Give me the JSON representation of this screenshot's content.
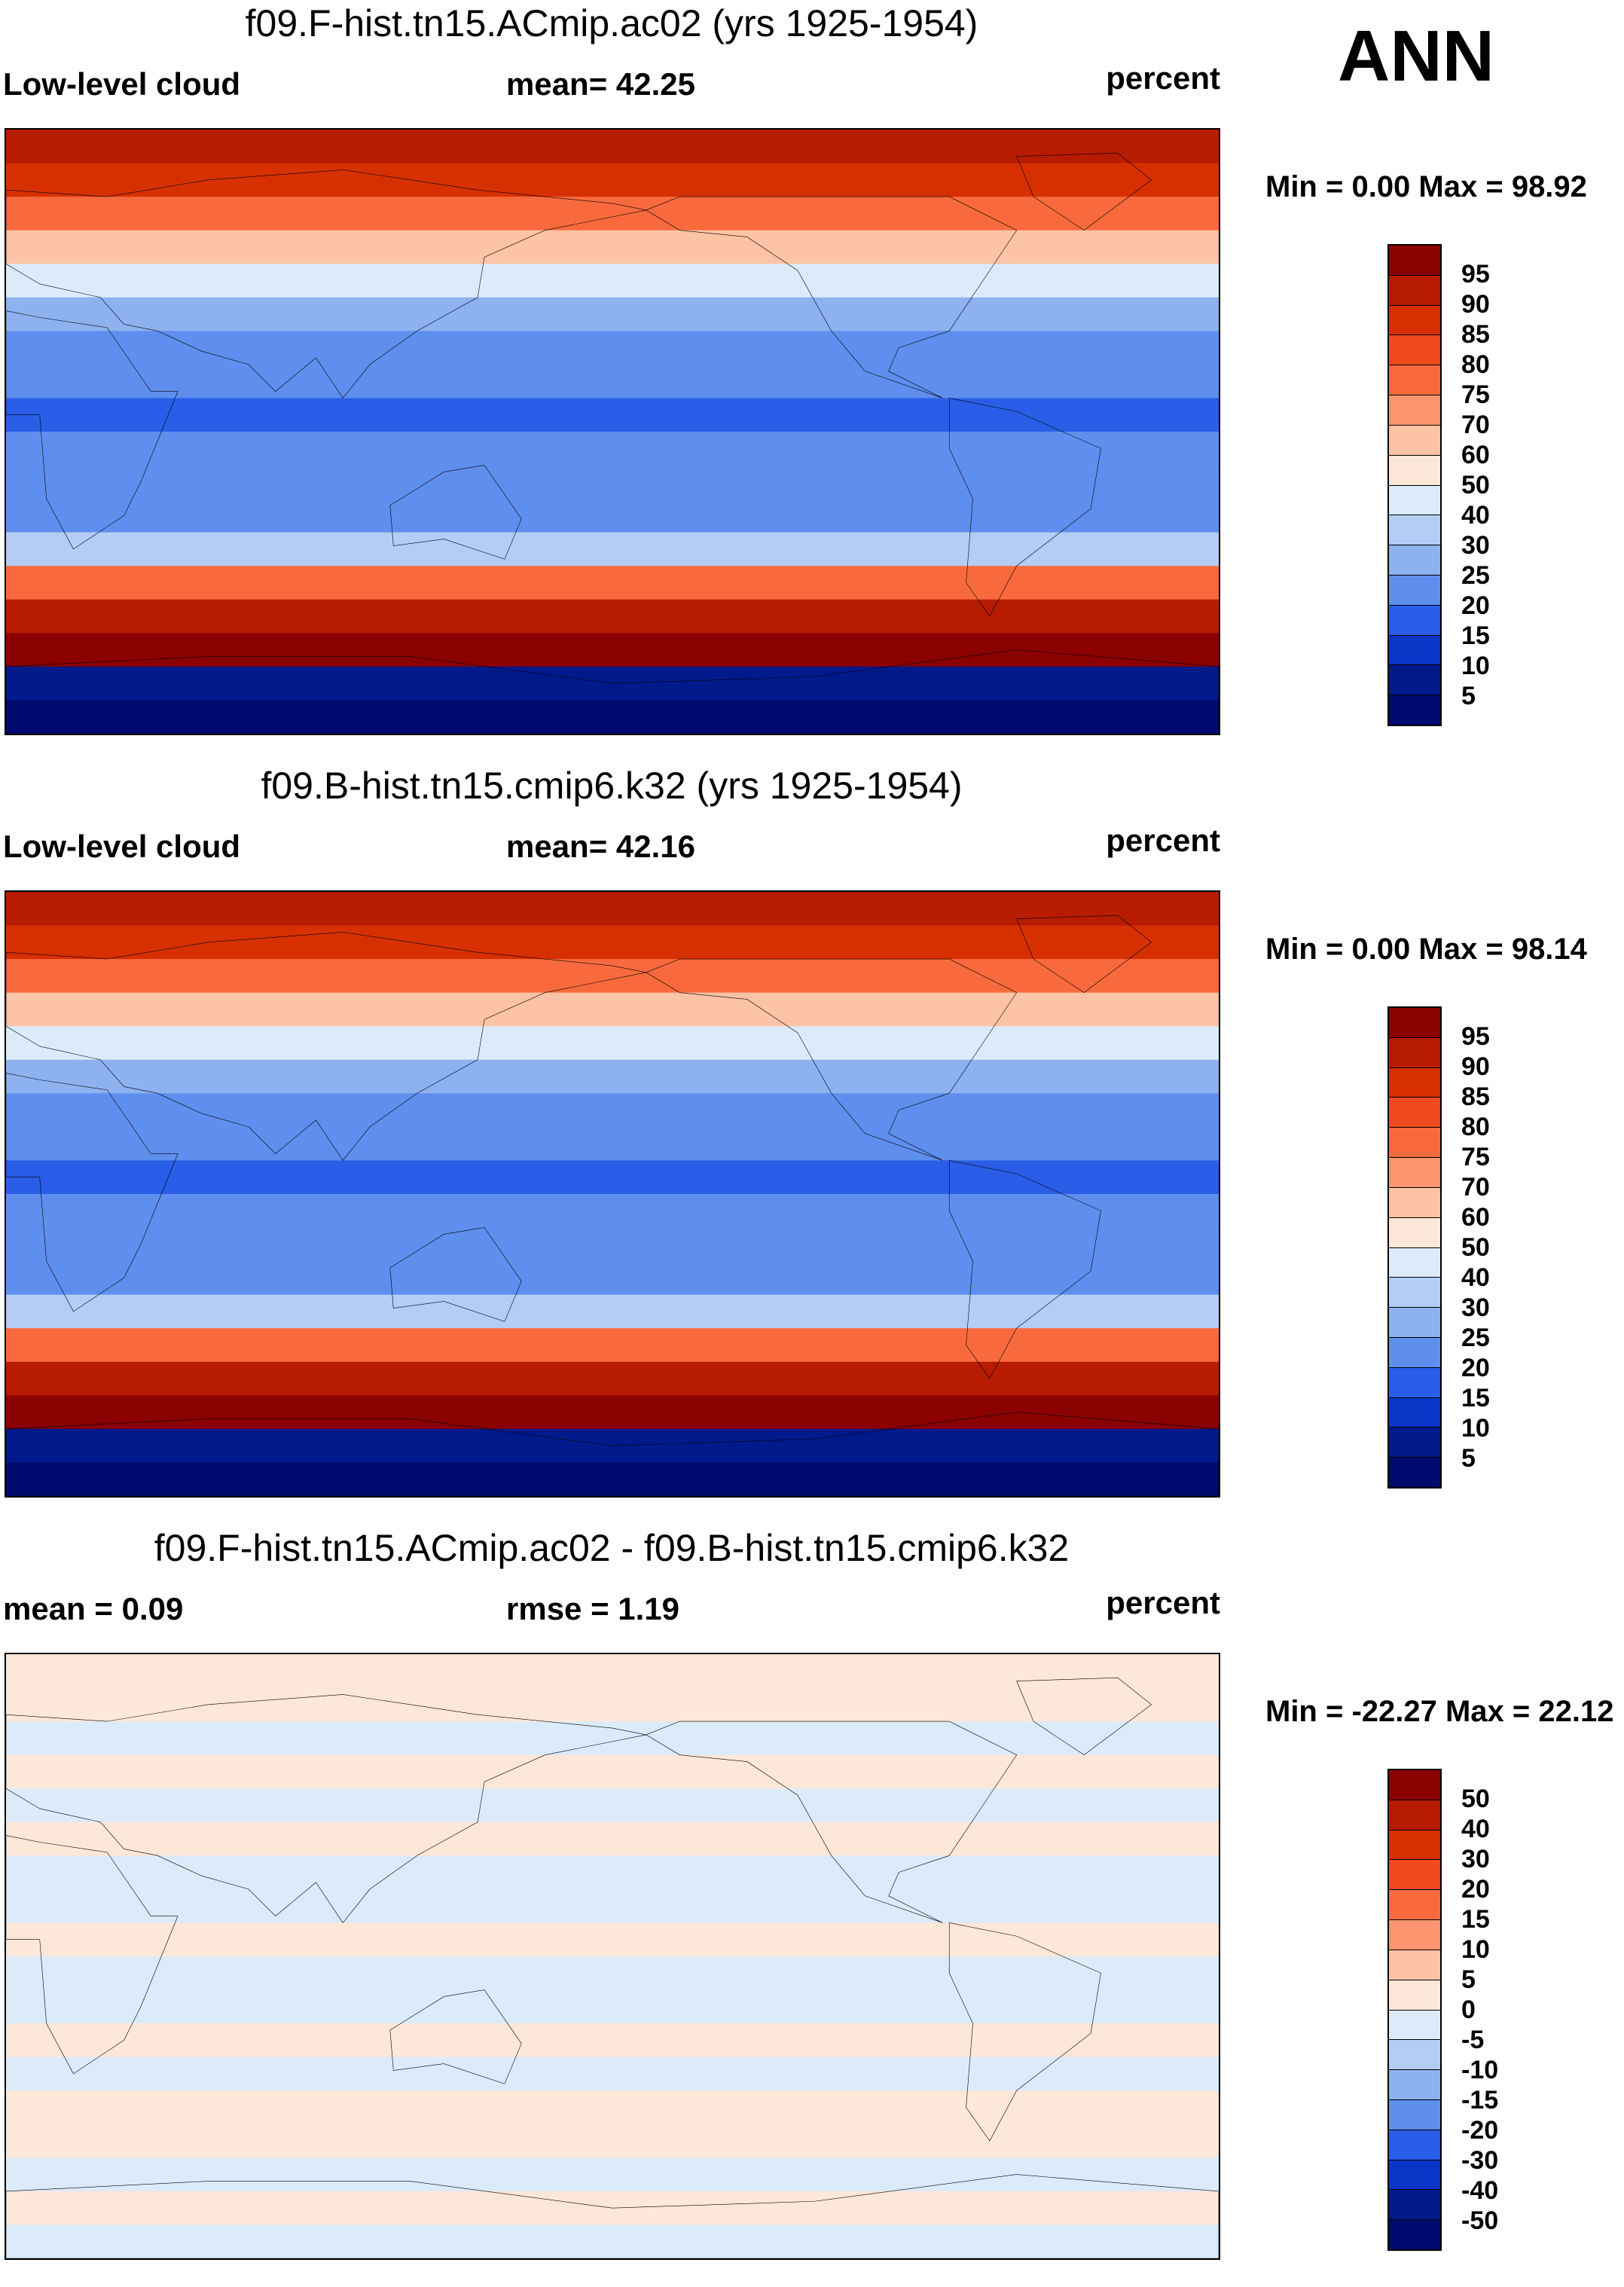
{
  "season": "ANN",
  "chart_data": [
    {
      "type": "heatmap",
      "title": "f09.F-hist.tn15.ACmip.ac02 (yrs 1925-1954)",
      "left_label": "Low-level cloud",
      "center_label": "mean=  42.25",
      "right_label": "percent",
      "minmax": "Min =   0.00 Max =  98.92",
      "levels": [
        "95",
        "90",
        "85",
        "80",
        "75",
        "70",
        "60",
        "50",
        "40",
        "30",
        "25",
        "20",
        "15",
        "10",
        "5"
      ],
      "colors": [
        "#8b0000",
        "#b71c00",
        "#d63000",
        "#ee4a1e",
        "#f86a3e",
        "#fb946f",
        "#fcc3a6",
        "#fde7d8",
        "#dcebfa",
        "#b4cdf5",
        "#8eb2f0",
        "#5f8fee",
        "#2a5ee8",
        "#0a36c8",
        "#001a8c",
        "#000a6e"
      ],
      "bands": [
        {
          "lat": 90,
          "c": 1
        },
        {
          "lat": 80,
          "c": 2
        },
        {
          "lat": 70,
          "c": 4
        },
        {
          "lat": 60,
          "c": 6
        },
        {
          "lat": 50,
          "c": 8
        },
        {
          "lat": 40,
          "c": 10
        },
        {
          "lat": 30,
          "c": 11
        },
        {
          "lat": 20,
          "c": 11
        },
        {
          "lat": 10,
          "c": 12
        },
        {
          "lat": 0,
          "c": 11
        },
        {
          "lat": -10,
          "c": 11
        },
        {
          "lat": -20,
          "c": 11
        },
        {
          "lat": -30,
          "c": 9
        },
        {
          "lat": -40,
          "c": 4
        },
        {
          "lat": -50,
          "c": 1
        },
        {
          "lat": -60,
          "c": 0
        },
        {
          "lat": -70,
          "c": 14
        },
        {
          "lat": -80,
          "c": 15
        }
      ]
    },
    {
      "type": "heatmap",
      "title": "f09.B-hist.tn15.cmip6.k32 (yrs 1925-1954)",
      "left_label": "Low-level cloud",
      "center_label": "mean=  42.16",
      "right_label": "percent",
      "minmax": "Min =   0.00 Max =  98.14",
      "levels": [
        "95",
        "90",
        "85",
        "80",
        "75",
        "70",
        "60",
        "50",
        "40",
        "30",
        "25",
        "20",
        "15",
        "10",
        "5"
      ],
      "colors": [
        "#8b0000",
        "#b71c00",
        "#d63000",
        "#ee4a1e",
        "#f86a3e",
        "#fb946f",
        "#fcc3a6",
        "#fde7d8",
        "#dcebfa",
        "#b4cdf5",
        "#8eb2f0",
        "#5f8fee",
        "#2a5ee8",
        "#0a36c8",
        "#001a8c",
        "#000a6e"
      ],
      "bands": [
        {
          "lat": 90,
          "c": 1
        },
        {
          "lat": 80,
          "c": 2
        },
        {
          "lat": 70,
          "c": 4
        },
        {
          "lat": 60,
          "c": 6
        },
        {
          "lat": 50,
          "c": 8
        },
        {
          "lat": 40,
          "c": 10
        },
        {
          "lat": 30,
          "c": 11
        },
        {
          "lat": 20,
          "c": 11
        },
        {
          "lat": 10,
          "c": 12
        },
        {
          "lat": 0,
          "c": 11
        },
        {
          "lat": -10,
          "c": 11
        },
        {
          "lat": -20,
          "c": 11
        },
        {
          "lat": -30,
          "c": 9
        },
        {
          "lat": -40,
          "c": 4
        },
        {
          "lat": -50,
          "c": 1
        },
        {
          "lat": -60,
          "c": 0
        },
        {
          "lat": -70,
          "c": 14
        },
        {
          "lat": -80,
          "c": 15
        }
      ]
    },
    {
      "type": "heatmap",
      "title": "f09.F-hist.tn15.ACmip.ac02 - f09.B-hist.tn15.cmip6.k32",
      "left_label": "mean =   0.09",
      "center_label": "rmse =   1.19",
      "right_label": "percent",
      "minmax": "Min = -22.27 Max =  22.12",
      "levels": [
        "50",
        "40",
        "30",
        "20",
        "15",
        "10",
        "5",
        "0",
        "-5",
        "-10",
        "-15",
        "-20",
        "-30",
        "-40",
        "-50"
      ],
      "colors": [
        "#8b0000",
        "#b71c00",
        "#d63000",
        "#ee4a1e",
        "#f86a3e",
        "#fb946f",
        "#fcc3a6",
        "#fde7d8",
        "#dcebfa",
        "#b4cdf5",
        "#8eb2f0",
        "#5f8fee",
        "#2a5ee8",
        "#0a36c8",
        "#001a8c",
        "#000a6e"
      ],
      "bands": [
        {
          "lat": 90,
          "c": 7
        },
        {
          "lat": 80,
          "c": 7
        },
        {
          "lat": 70,
          "c": 8
        },
        {
          "lat": 60,
          "c": 7
        },
        {
          "lat": 50,
          "c": 8
        },
        {
          "lat": 40,
          "c": 7
        },
        {
          "lat": 30,
          "c": 8
        },
        {
          "lat": 20,
          "c": 8
        },
        {
          "lat": 10,
          "c": 7
        },
        {
          "lat": 0,
          "c": 8
        },
        {
          "lat": -10,
          "c": 8
        },
        {
          "lat": -20,
          "c": 7
        },
        {
          "lat": -30,
          "c": 8
        },
        {
          "lat": -40,
          "c": 7
        },
        {
          "lat": -50,
          "c": 7
        },
        {
          "lat": -60,
          "c": 8
        },
        {
          "lat": -70,
          "c": 7
        },
        {
          "lat": -80,
          "c": 8
        }
      ]
    }
  ]
}
